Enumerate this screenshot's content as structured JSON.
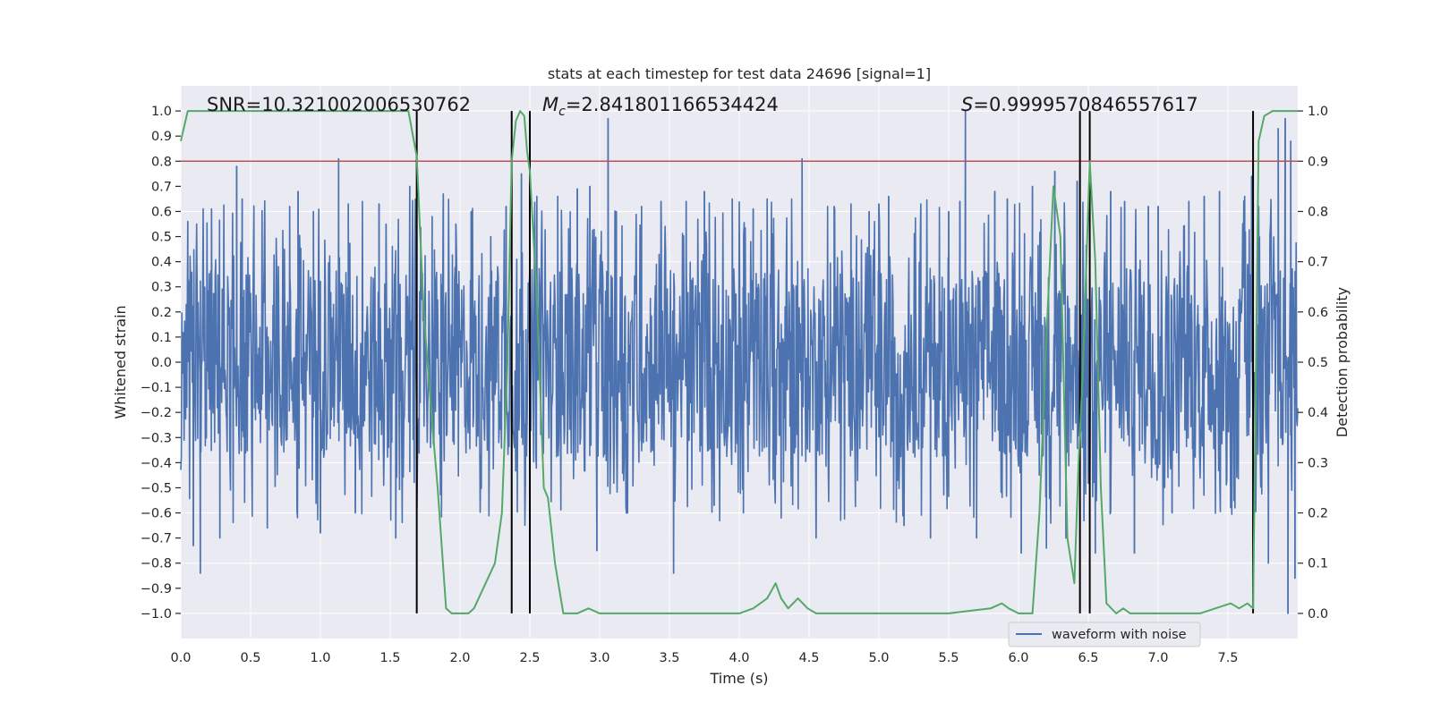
{
  "chart_data": {
    "type": "line",
    "title": "stats at each timestep for test data 24696 [signal=1]",
    "xlabel": "Time (s)",
    "ylabel_left": "Whitened strain",
    "ylabel_right": "Detection probability",
    "xlim": [
      0.0,
      8.0
    ],
    "ylim_left": [
      -1.1,
      1.1
    ],
    "ylim_right": [
      -0.05,
      1.05
    ],
    "x_ticks": [
      0.0,
      0.5,
      1.0,
      1.5,
      2.0,
      2.5,
      3.0,
      3.5,
      4.0,
      4.5,
      5.0,
      5.5,
      6.0,
      6.5,
      7.0,
      7.5
    ],
    "x_tick_labels": [
      "0.0",
      "0.5",
      "1.0",
      "1.5",
      "2.0",
      "2.5",
      "3.0",
      "3.5",
      "4.0",
      "4.5",
      "5.0",
      "5.5",
      "6.0",
      "6.5",
      "7.0",
      "7.5"
    ],
    "y_left_ticks": [
      1.0,
      0.9,
      0.8,
      0.7,
      0.6,
      0.5,
      0.4,
      0.3,
      0.2,
      0.1,
      0.0,
      -0.1,
      -0.2,
      -0.3,
      -0.4,
      -0.5,
      -0.6,
      -0.7,
      -0.8,
      -0.9,
      -1.0
    ],
    "y_left_tick_labels": [
      "1.0",
      "0.9",
      "0.8",
      "0.7",
      "0.6",
      "0.5",
      "0.4",
      "0.3",
      "0.2",
      "0.1",
      "0.0",
      "−0.1",
      "−0.2",
      "−0.3",
      "−0.4",
      "−0.5",
      "−0.6",
      "−0.7",
      "−0.8",
      "−0.9",
      "−1.0"
    ],
    "y_right_ticks": [
      1.0,
      0.9,
      0.8,
      0.7,
      0.6,
      0.5,
      0.4,
      0.3,
      0.2,
      0.1,
      0.0
    ],
    "y_right_tick_labels": [
      "1.0",
      "0.9",
      "0.8",
      "0.7",
      "0.6",
      "0.5",
      "0.4",
      "0.3",
      "0.2",
      "0.1",
      "0.0"
    ],
    "grid": true,
    "annotations": {
      "snr": "SNR=10.321002006530762",
      "mc_symbol": "M",
      "mc_sub": "c",
      "mc_value": "=2.841801166534424",
      "s_symbol": "S",
      "s_value": "=0.9999570846557617"
    },
    "threshold_strain": 0.8,
    "vertical_lines_x": [
      1.69,
      2.37,
      2.5,
      6.44,
      6.51,
      7.68
    ],
    "legend": {
      "position": "lower-right",
      "entries": [
        "waveform with noise"
      ]
    },
    "series": [
      {
        "name": "waveform with noise",
        "axis": "left",
        "envelope": {
          "core_half_range": 0.38,
          "spike_max": 0.65,
          "samples_per_second": 256
        },
        "spikes": [
          [
            0.05,
            0.56
          ],
          [
            0.09,
            -0.73
          ],
          [
            0.14,
            -0.84
          ],
          [
            0.22,
            0.61
          ],
          [
            0.28,
            -0.7
          ],
          [
            0.4,
            0.78
          ],
          [
            0.44,
            0.65
          ],
          [
            0.62,
            -0.66
          ],
          [
            0.78,
            0.62
          ],
          [
            0.84,
            0.68
          ],
          [
            0.95,
            0.6
          ],
          [
            1.0,
            -0.68
          ],
          [
            1.13,
            0.81
          ],
          [
            1.2,
            0.63
          ],
          [
            1.25,
            -0.6
          ],
          [
            1.42,
            0.63
          ],
          [
            1.47,
            0.55
          ],
          [
            1.54,
            -0.7
          ],
          [
            1.64,
            0.7
          ],
          [
            1.8,
            0.58
          ],
          [
            1.88,
            0.67
          ],
          [
            1.97,
            0.55
          ],
          [
            2.08,
            0.6
          ],
          [
            2.22,
            0.5
          ],
          [
            2.33,
            0.62
          ],
          [
            2.44,
            0.75
          ],
          [
            2.55,
            0.66
          ],
          [
            2.7,
            0.66
          ],
          [
            2.84,
            0.69
          ],
          [
            2.93,
            0.7
          ],
          [
            2.98,
            -0.75
          ],
          [
            3.06,
            0.97
          ],
          [
            3.12,
            0.6
          ],
          [
            3.2,
            -0.6
          ],
          [
            3.3,
            0.62
          ],
          [
            3.44,
            0.64
          ],
          [
            3.53,
            -0.84
          ],
          [
            3.62,
            0.64
          ],
          [
            3.75,
            0.68
          ],
          [
            3.82,
            -0.57
          ],
          [
            3.95,
            0.65
          ],
          [
            4.03,
            -0.6
          ],
          [
            4.1,
            0.61
          ],
          [
            4.2,
            0.65
          ],
          [
            4.3,
            -0.62
          ],
          [
            4.45,
            0.81
          ],
          [
            4.55,
            -0.7
          ],
          [
            4.68,
            0.62
          ],
          [
            4.8,
            0.63
          ],
          [
            4.93,
            0.6
          ],
          [
            5.0,
            0.63
          ],
          [
            5.07,
            0.66
          ],
          [
            5.18,
            -0.65
          ],
          [
            5.3,
            0.63
          ],
          [
            5.37,
            -0.7
          ],
          [
            5.5,
            0.6
          ],
          [
            5.58,
            0.64
          ],
          [
            5.62,
            1.0
          ],
          [
            5.7,
            -0.7
          ],
          [
            5.83,
            0.68
          ],
          [
            5.92,
            0.65
          ],
          [
            6.02,
            -0.76
          ],
          [
            6.1,
            0.7
          ],
          [
            6.2,
            -0.74
          ],
          [
            6.26,
            0.76
          ],
          [
            6.34,
            -0.7
          ],
          [
            6.42,
            0.72
          ],
          [
            6.55,
            -0.76
          ],
          [
            6.66,
            0.68
          ],
          [
            6.76,
            0.64
          ],
          [
            6.83,
            -0.76
          ],
          [
            6.93,
            0.62
          ],
          [
            7.0,
            0.62
          ],
          [
            7.1,
            -0.6
          ],
          [
            7.22,
            0.64
          ],
          [
            7.33,
            0.66
          ],
          [
            7.44,
            0.68
          ],
          [
            7.55,
            -0.58
          ],
          [
            7.62,
            0.66
          ],
          [
            7.67,
            0.74
          ],
          [
            7.72,
            0.62
          ],
          [
            7.79,
            -0.8
          ],
          [
            7.86,
            0.93
          ],
          [
            7.91,
            0.97
          ],
          [
            7.93,
            -1.0
          ],
          [
            7.95,
            0.88
          ],
          [
            7.98,
            -0.86
          ]
        ]
      },
      {
        "name": "",
        "axis": "right",
        "x": [
          0.0,
          0.05,
          0.1,
          0.2,
          0.3,
          0.5,
          0.8,
          1.0,
          1.2,
          1.4,
          1.55,
          1.63,
          1.69,
          1.74,
          1.8,
          1.84,
          1.9,
          1.94,
          2.0,
          2.06,
          2.1,
          2.15,
          2.2,
          2.25,
          2.3,
          2.34,
          2.37,
          2.4,
          2.43,
          2.46,
          2.48,
          2.5,
          2.55,
          2.6,
          2.63,
          2.68,
          2.74,
          2.78,
          2.84,
          2.92,
          3.0,
          3.1,
          3.3,
          3.5,
          3.7,
          4.0,
          4.1,
          4.2,
          4.26,
          4.3,
          4.35,
          4.42,
          4.49,
          4.55,
          4.6,
          4.7,
          4.8,
          5.0,
          5.2,
          5.5,
          5.8,
          5.88,
          5.93,
          6.0,
          6.1,
          6.15,
          6.2,
          6.25,
          6.3,
          6.35,
          6.4,
          6.43,
          6.46,
          6.51,
          6.55,
          6.59,
          6.63,
          6.7,
          6.75,
          6.8,
          6.85,
          7.0,
          7.3,
          7.52,
          7.58,
          7.64,
          7.68,
          7.72,
          7.76,
          7.82,
          7.9,
          8.0
        ],
        "values": [
          0.94,
          1.0,
          1.0,
          1.0,
          1.0,
          1.0,
          1.0,
          1.0,
          1.0,
          1.0,
          1.0,
          1.0,
          0.91,
          0.6,
          0.38,
          0.25,
          0.01,
          0.0,
          0.0,
          0.0,
          0.01,
          0.04,
          0.07,
          0.1,
          0.2,
          0.5,
          0.9,
          0.98,
          1.0,
          0.99,
          0.92,
          0.88,
          0.63,
          0.25,
          0.23,
          0.1,
          0.0,
          0.0,
          0.0,
          0.01,
          0.0,
          0.0,
          0.0,
          0.0,
          0.0,
          0.0,
          0.01,
          0.03,
          0.06,
          0.03,
          0.01,
          0.03,
          0.01,
          0.0,
          0.0,
          0.0,
          0.0,
          0.0,
          0.0,
          0.0,
          0.01,
          0.02,
          0.01,
          0.0,
          0.0,
          0.2,
          0.55,
          0.85,
          0.75,
          0.15,
          0.06,
          0.3,
          0.48,
          0.9,
          0.7,
          0.25,
          0.02,
          0.0,
          0.01,
          0.0,
          0.0,
          0.0,
          0.0,
          0.02,
          0.01,
          0.02,
          0.01,
          0.94,
          0.99,
          1.0,
          1.0,
          1.0
        ]
      }
    ]
  }
}
